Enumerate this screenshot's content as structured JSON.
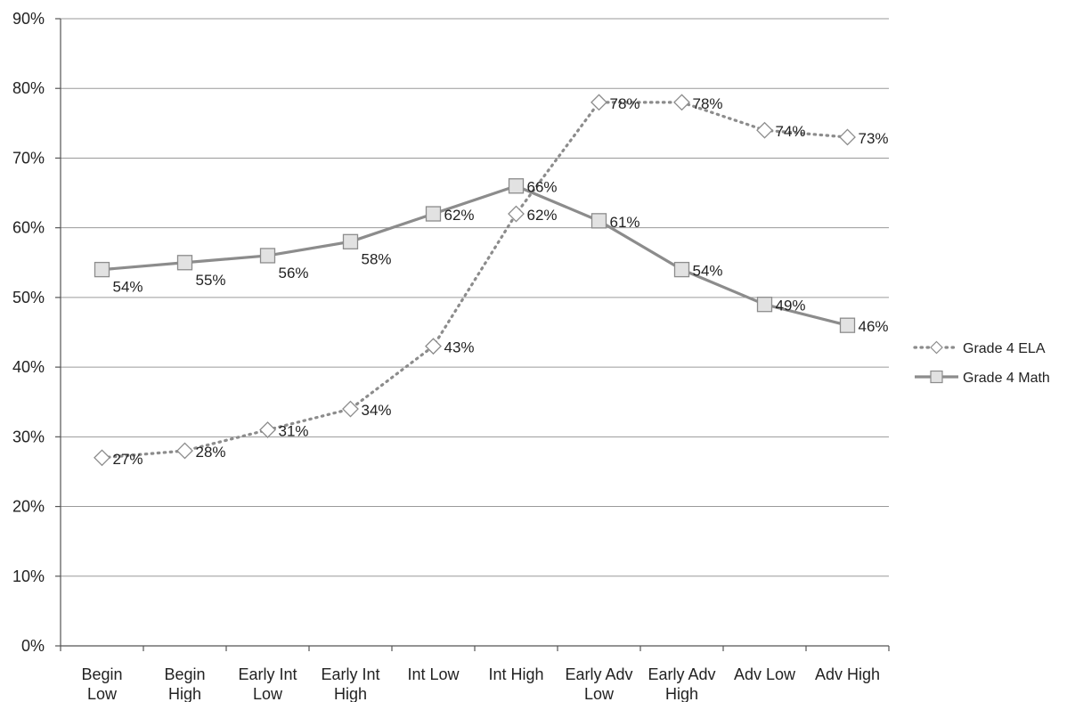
{
  "chart_data": {
    "type": "line",
    "title": "",
    "xlabel": "",
    "ylabel": "",
    "categories": [
      [
        "Begin",
        "Low"
      ],
      [
        "Begin",
        "High"
      ],
      [
        "Early Int",
        "Low"
      ],
      [
        "Early Int",
        "High"
      ],
      [
        "Int Low"
      ],
      [
        "Int High"
      ],
      [
        "Early Adv",
        "Low"
      ],
      [
        "Early Adv",
        "High"
      ],
      [
        "Adv Low"
      ],
      [
        "Adv High"
      ]
    ],
    "ylim": [
      0,
      90
    ],
    "yticks": [
      0,
      10,
      20,
      30,
      40,
      50,
      60,
      70,
      80,
      90
    ],
    "ytick_labels": [
      "0%",
      "10%",
      "20%",
      "30%",
      "40%",
      "50%",
      "60%",
      "70%",
      "80%",
      "90%"
    ],
    "grid": true,
    "legend_position": "right",
    "series": [
      {
        "name": "Grade 4 ELA",
        "values": [
          27,
          28,
          31,
          34,
          43,
          62,
          78,
          78,
          74,
          73
        ],
        "labels": [
          "27%",
          "28%",
          "31%",
          "34%",
          "43%",
          "62%",
          "78%",
          "78%",
          "74%",
          "73%"
        ],
        "line_style": "dotted",
        "marker": "diamond",
        "color": "#8c8c8c",
        "marker_fill": "#ffffff"
      },
      {
        "name": "Grade 4 Math",
        "values": [
          54,
          55,
          56,
          58,
          62,
          66,
          61,
          54,
          49,
          46
        ],
        "labels": [
          "54%",
          "55%",
          "56%",
          "58%",
          "62%",
          "66%",
          "61%",
          "54%",
          "49%",
          "46%"
        ],
        "line_style": "solid",
        "marker": "square",
        "color": "#8c8c8c",
        "marker_fill": "#e2e2e2"
      }
    ]
  }
}
